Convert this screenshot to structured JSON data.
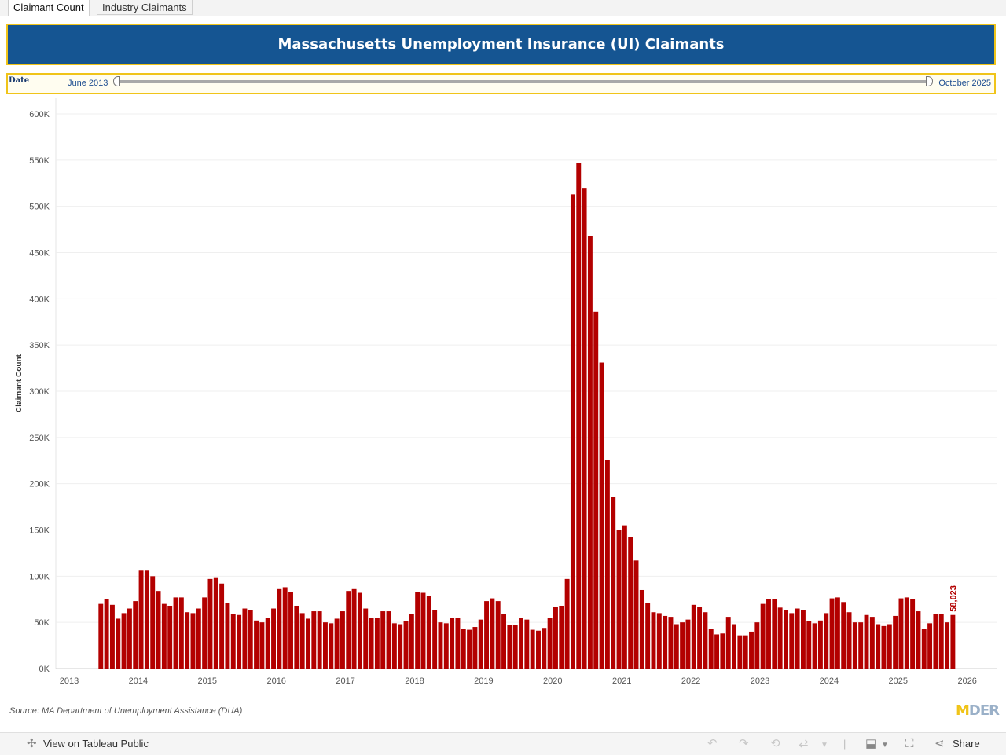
{
  "tabs": [
    {
      "label": "Claimant Count",
      "active": true
    },
    {
      "label": "Industry Claimants",
      "active": false
    }
  ],
  "banner": {
    "title": "Massachusetts Unemployment Insurance (UI) Claimants"
  },
  "filter": {
    "label": "Date",
    "start": "June 2013",
    "end": "October 2025"
  },
  "chart_data": {
    "type": "bar",
    "ylabel": "Claimant Count",
    "xlabel": "",
    "ylim": [
      0,
      600000
    ],
    "yticks": [
      0,
      50000,
      100000,
      150000,
      200000,
      250000,
      300000,
      350000,
      400000,
      450000,
      500000,
      550000,
      600000
    ],
    "ytick_labels": [
      "0K",
      "50K",
      "100K",
      "150K",
      "200K",
      "250K",
      "300K",
      "350K",
      "400K",
      "450K",
      "500K",
      "550K",
      "600K"
    ],
    "xticks": [
      "2013",
      "2014",
      "2015",
      "2016",
      "2017",
      "2018",
      "2019",
      "2020",
      "2021",
      "2022",
      "2023",
      "2024",
      "2025",
      "2026"
    ],
    "start_month": "2013-06",
    "values": [
      70000,
      75000,
      69000,
      54000,
      60000,
      65000,
      73000,
      106000,
      106000,
      100000,
      84000,
      70000,
      68000,
      77000,
      77000,
      61000,
      60000,
      65000,
      77000,
      97000,
      98000,
      92000,
      71000,
      59000,
      58000,
      65000,
      63000,
      52000,
      50000,
      55000,
      65000,
      86000,
      88000,
      83000,
      68000,
      60000,
      54000,
      62000,
      62000,
      50000,
      49000,
      54000,
      62000,
      84000,
      86000,
      82000,
      65000,
      55000,
      55000,
      62000,
      62000,
      49000,
      48000,
      51000,
      59000,
      83000,
      82000,
      79000,
      63000,
      50000,
      49000,
      55000,
      55000,
      43000,
      42000,
      45000,
      53000,
      73000,
      76000,
      73000,
      59000,
      47000,
      47000,
      55000,
      53000,
      42000,
      41000,
      44000,
      55000,
      67000,
      68000,
      97000,
      513000,
      547000,
      520000,
      468000,
      386000,
      331000,
      226000,
      186000,
      150000,
      155000,
      142000,
      117000,
      85000,
      71000,
      61000,
      60000,
      57000,
      56000,
      48000,
      50000,
      53000,
      69000,
      67000,
      61000,
      43000,
      37000,
      38000,
      56000,
      48000,
      36000,
      36000,
      40000,
      50000,
      70000,
      75000,
      75000,
      66000,
      63000,
      60000,
      65000,
      63000,
      51000,
      49000,
      52000,
      60000,
      76000,
      77000,
      72000,
      61000,
      50000,
      50000,
      58000,
      56000,
      48000,
      46000,
      48000,
      57000,
      76000,
      77000,
      75000,
      62000,
      43000,
      49000,
      59000,
      59000,
      50000,
      58023
    ],
    "last_label": "58,023",
    "bar_color": "#b30000",
    "grid": "horizontal"
  },
  "footer": {
    "source": "Source: MA Department of Unemployment Assistance (DUA)",
    "logo_main": "DER",
    "logo_mark": "M"
  },
  "toolbar": {
    "view_label": "View on Tableau Public",
    "share_label": "Share"
  }
}
